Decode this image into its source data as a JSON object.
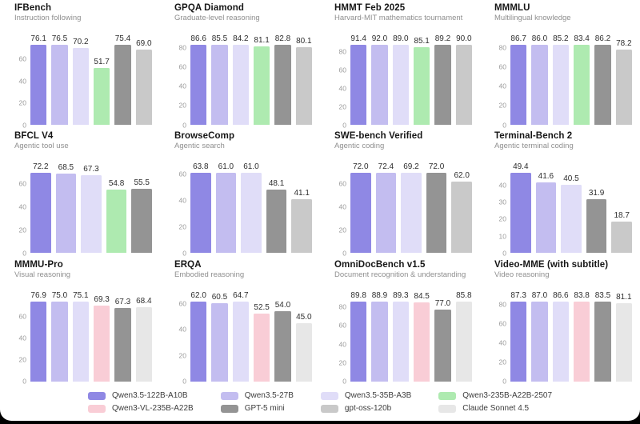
{
  "page": {
    "background": "#000000",
    "card_background": "#ffffff"
  },
  "legend": {
    "items": [
      {
        "name": "Qwen3.5-122B-A10B",
        "color": "#8f88e4"
      },
      {
        "name": "Qwen3.5-27B",
        "color": "#c3bdf0"
      },
      {
        "name": "Qwen3.5-35B-A3B",
        "color": "#e0ddf8"
      },
      {
        "name": "Qwen3-235B-A22B-2507",
        "color": "#aeeab0"
      },
      {
        "name": "Qwen3-VL-235B-A22B",
        "color": "#f9cdd6"
      },
      {
        "name": "GPT-5 mini",
        "color": "#949494"
      },
      {
        "name": "gpt-oss-120b",
        "color": "#c9c9c9"
      },
      {
        "name": "Claude Sonnet 4.5",
        "color": "#e7e7e7"
      }
    ]
  },
  "chart_data": [
    {
      "type": "bar",
      "title": "IFBench",
      "subtitle": "Instruction following",
      "yticks": [
        0,
        20,
        40,
        60
      ],
      "ylim": [
        0,
        81.9
      ],
      "grid": false,
      "legend_position": "bottom",
      "series": [
        {
          "name": "Qwen3.5-122B-A10B",
          "value": 76.1
        },
        {
          "name": "Qwen3.5-27B",
          "value": 76.5
        },
        {
          "name": "Qwen3.5-35B-A3B",
          "value": 70.2
        },
        {
          "name": "Qwen3-235B-A22B-2507",
          "value": 51.7
        },
        {
          "name": "GPT-5 mini",
          "value": 75.4
        },
        {
          "name": "gpt-oss-120b",
          "value": 69.0
        }
      ]
    },
    {
      "type": "bar",
      "title": "GPQA Diamond",
      "subtitle": "Graduate-level reasoning",
      "yticks": [
        0,
        20,
        40,
        60,
        80
      ],
      "ylim": [
        0,
        92.7
      ],
      "grid": false,
      "legend_position": "bottom",
      "series": [
        {
          "name": "Qwen3.5-122B-A10B",
          "value": 86.6
        },
        {
          "name": "Qwen3.5-27B",
          "value": 85.5
        },
        {
          "name": "Qwen3.5-35B-A3B",
          "value": 84.2
        },
        {
          "name": "Qwen3-235B-A22B-2507",
          "value": 81.1
        },
        {
          "name": "GPT-5 mini",
          "value": 82.8
        },
        {
          "name": "gpt-oss-120b",
          "value": 80.1
        }
      ]
    },
    {
      "type": "bar",
      "title": "HMMT Feb 2025",
      "subtitle": "Harvard-MIT mathematics tournament",
      "yticks": [
        0,
        20,
        40,
        60,
        80
      ],
      "ylim": [
        0,
        98.4
      ],
      "grid": false,
      "legend_position": "bottom",
      "series": [
        {
          "name": "Qwen3.5-122B-A10B",
          "value": 91.4
        },
        {
          "name": "Qwen3.5-27B",
          "value": 92.0
        },
        {
          "name": "Qwen3.5-35B-A3B",
          "value": 89.0
        },
        {
          "name": "Qwen3-235B-A22B-2507",
          "value": 85.1
        },
        {
          "name": "GPT-5 mini",
          "value": 89.2
        },
        {
          "name": "gpt-oss-120b",
          "value": 90.0
        }
      ]
    },
    {
      "type": "bar",
      "title": "MMMLU",
      "subtitle": "Multilingual knowledge",
      "yticks": [
        0,
        20,
        40,
        60,
        80
      ],
      "ylim": [
        0,
        92.8
      ],
      "grid": false,
      "legend_position": "bottom",
      "series": [
        {
          "name": "Qwen3.5-122B-A10B",
          "value": 86.7
        },
        {
          "name": "Qwen3.5-27B",
          "value": 86.0
        },
        {
          "name": "Qwen3.5-35B-A3B",
          "value": 85.2
        },
        {
          "name": "Qwen3-235B-A22B-2507",
          "value": 83.4
        },
        {
          "name": "GPT-5 mini",
          "value": 86.2
        },
        {
          "name": "gpt-oss-120b",
          "value": 78.2
        }
      ]
    },
    {
      "type": "bar",
      "title": "BFCL V4",
      "subtitle": "Agentic tool use",
      "yticks": [
        0,
        20,
        40,
        60
      ],
      "ylim": [
        0,
        77.3
      ],
      "grid": false,
      "legend_position": "bottom",
      "series": [
        {
          "name": "Qwen3.5-122B-A10B",
          "value": 72.2
        },
        {
          "name": "Qwen3.5-27B",
          "value": 68.5
        },
        {
          "name": "Qwen3.5-35B-A3B",
          "value": 67.3
        },
        {
          "name": "Qwen3-235B-A22B-2507",
          "value": 54.8
        },
        {
          "name": "GPT-5 mini",
          "value": 55.5
        }
      ]
    },
    {
      "type": "bar",
      "title": "BrowseComp",
      "subtitle": "Agentic search",
      "yticks": [
        0,
        20,
        40,
        60
      ],
      "ylim": [
        0,
        68.3
      ],
      "grid": false,
      "legend_position": "bottom",
      "series": [
        {
          "name": "Qwen3.5-122B-A10B",
          "value": 63.8
        },
        {
          "name": "Qwen3.5-27B",
          "value": 61.0
        },
        {
          "name": "Qwen3.5-35B-A3B",
          "value": 61.0
        },
        {
          "name": "GPT-5 mini",
          "value": 48.1
        },
        {
          "name": "gpt-oss-120b",
          "value": 41.1
        }
      ]
    },
    {
      "type": "bar",
      "title": "SWE-bench Verified",
      "subtitle": "Agentic coding",
      "yticks": [
        0,
        20,
        40,
        60
      ],
      "ylim": [
        0,
        77.5
      ],
      "grid": false,
      "legend_position": "bottom",
      "series": [
        {
          "name": "Qwen3.5-122B-A10B",
          "value": 72.0
        },
        {
          "name": "Qwen3.5-27B",
          "value": 72.4
        },
        {
          "name": "Qwen3.5-35B-A3B",
          "value": 69.2
        },
        {
          "name": "GPT-5 mini",
          "value": 72.0
        },
        {
          "name": "gpt-oss-120b",
          "value": 62.0
        }
      ]
    },
    {
      "type": "bar",
      "title": "Terminal-Bench 2",
      "subtitle": "Agentic terminal coding",
      "yticks": [
        0,
        10,
        20,
        30,
        40
      ],
      "ylim": [
        0,
        52.9
      ],
      "grid": false,
      "legend_position": "bottom",
      "series": [
        {
          "name": "Qwen3.5-122B-A10B",
          "value": 49.4
        },
        {
          "name": "Qwen3.5-27B",
          "value": 41.6
        },
        {
          "name": "Qwen3.5-35B-A3B",
          "value": 40.5
        },
        {
          "name": "GPT-5 mini",
          "value": 31.9
        },
        {
          "name": "gpt-oss-120b",
          "value": 18.7
        }
      ]
    },
    {
      "type": "bar",
      "title": "MMMU-Pro",
      "subtitle": "Visual reasoning",
      "yticks": [
        0,
        20,
        40,
        60
      ],
      "ylim": [
        0,
        82.3
      ],
      "grid": false,
      "legend_position": "bottom",
      "series": [
        {
          "name": "Qwen3.5-122B-A10B",
          "value": 76.9
        },
        {
          "name": "Qwen3.5-27B",
          "value": 75.0
        },
        {
          "name": "Qwen3.5-35B-A3B",
          "value": 75.1
        },
        {
          "name": "Qwen3-VL-235B-A22B",
          "value": 69.3
        },
        {
          "name": "GPT-5 mini",
          "value": 67.3
        },
        {
          "name": "Claude Sonnet 4.5",
          "value": 68.4
        }
      ]
    },
    {
      "type": "bar",
      "title": "ERQA",
      "subtitle": "Embodied reasoning",
      "yticks": [
        0,
        20,
        40,
        60
      ],
      "ylim": [
        0,
        69.2
      ],
      "grid": false,
      "legend_position": "bottom",
      "series": [
        {
          "name": "Qwen3.5-122B-A10B",
          "value": 62.0
        },
        {
          "name": "Qwen3.5-27B",
          "value": 60.5
        },
        {
          "name": "Qwen3.5-35B-A3B",
          "value": 64.7
        },
        {
          "name": "Qwen3-VL-235B-A22B",
          "value": 52.5
        },
        {
          "name": "GPT-5 mini",
          "value": 54.0
        },
        {
          "name": "Claude Sonnet 4.5",
          "value": 45.0
        }
      ]
    },
    {
      "type": "bar",
      "title": "OmniDocBench v1.5",
      "subtitle": "Document recognition & understanding",
      "yticks": [
        0,
        20,
        40,
        60,
        80
      ],
      "ylim": [
        0,
        96.1
      ],
      "grid": false,
      "legend_position": "bottom",
      "series": [
        {
          "name": "Qwen3.5-122B-A10B",
          "value": 89.8
        },
        {
          "name": "Qwen3.5-27B",
          "value": 88.9
        },
        {
          "name": "Qwen3.5-35B-A3B",
          "value": 89.3
        },
        {
          "name": "Qwen3-VL-235B-A22B",
          "value": 84.5
        },
        {
          "name": "GPT-5 mini",
          "value": 77.0
        },
        {
          "name": "Claude Sonnet 4.5",
          "value": 85.8
        }
      ]
    },
    {
      "type": "bar",
      "title": "Video-MME (with subtitle)",
      "subtitle": "Video reasoning",
      "yticks": [
        0,
        20,
        40,
        60,
        80
      ],
      "ylim": [
        0,
        93.4
      ],
      "grid": false,
      "legend_position": "bottom",
      "series": [
        {
          "name": "Qwen3.5-122B-A10B",
          "value": 87.3
        },
        {
          "name": "Qwen3.5-27B",
          "value": 87.0
        },
        {
          "name": "Qwen3.5-35B-A3B",
          "value": 86.6
        },
        {
          "name": "Qwen3-VL-235B-A22B",
          "value": 83.8
        },
        {
          "name": "GPT-5 mini",
          "value": 83.5
        },
        {
          "name": "Claude Sonnet 4.5",
          "value": 81.1
        }
      ]
    }
  ]
}
